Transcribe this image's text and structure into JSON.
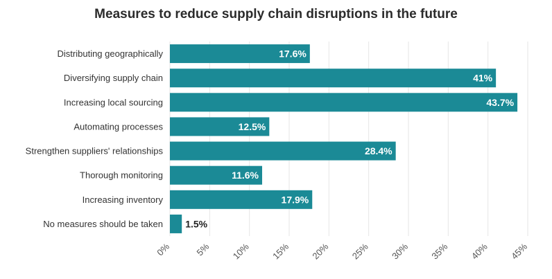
{
  "chart_data": {
    "type": "bar",
    "orientation": "horizontal",
    "title": "Measures to reduce supply chain disruptions in the future",
    "xlabel": "",
    "ylabel": "",
    "categories": [
      "Distributing geographically",
      "Diversifying supply chain",
      "Increasing local sourcing",
      "Automating processes",
      "Strengthen suppliers' relationships",
      "Thorough monitoring",
      "Increasing inventory",
      "No measures should be taken"
    ],
    "values": [
      17.6,
      41,
      43.7,
      12.5,
      28.4,
      11.6,
      17.9,
      1.5
    ],
    "value_labels": [
      "17.6%",
      "41%",
      "43.7%",
      "12.5%",
      "28.4%",
      "11.6%",
      "17.9%",
      "1.5%"
    ],
    "xlim": [
      0,
      45
    ],
    "ticks": [
      0,
      5,
      10,
      15,
      20,
      25,
      30,
      35,
      40,
      45
    ],
    "tick_labels": [
      "0%",
      "5%",
      "10%",
      "15%",
      "20%",
      "25%",
      "30%",
      "35%",
      "40%",
      "45%"
    ],
    "grid": true,
    "bar_color": "#1b8a96"
  }
}
